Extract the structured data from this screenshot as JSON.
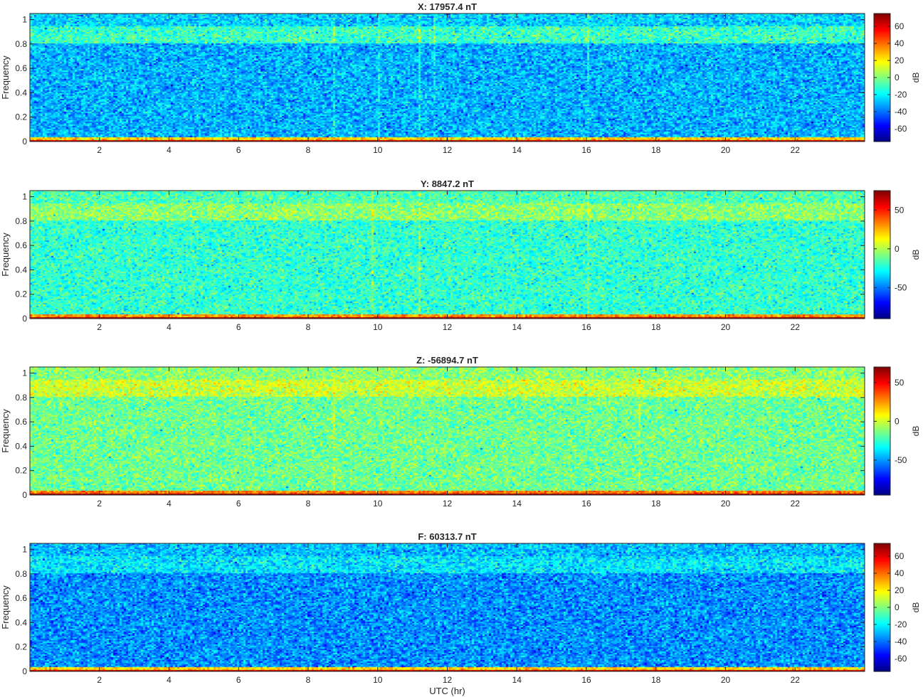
{
  "figure": {
    "xlabel": "UTC (hr)",
    "ylabel": "Frequency",
    "colorbar_label": "dB"
  },
  "chart_data": [
    {
      "type": "heatmap",
      "title": "X: 17957.4 nT",
      "xlabel": "",
      "ylabel": "Frequency",
      "xlim": [
        0,
        24
      ],
      "ylim": [
        0,
        1.05
      ],
      "xticks": [
        2,
        4,
        6,
        8,
        10,
        12,
        14,
        16,
        18,
        20,
        22
      ],
      "yticks": [
        0,
        0.2,
        0.4,
        0.6,
        0.8,
        1
      ],
      "colormap": "jet",
      "colorbar": {
        "label": "dB",
        "clim": [
          -75,
          75
        ],
        "ticks": [
          -60,
          -40,
          -20,
          0,
          20,
          40,
          60
        ]
      },
      "levels_db": {
        "f_0_0.01": 65,
        "f_0.01_0.03": 25,
        "f_0.03_0.8": -30,
        "f_0.8_0.95": -10,
        "f_0.95_1.05": -25
      },
      "features": {
        "vertical_streaks_hr": [
          8.7,
          10.0,
          11.2,
          11.6,
          16.0
        ]
      }
    },
    {
      "type": "heatmap",
      "title": "Y: 8847.2 nT",
      "xlabel": "",
      "ylabel": "Frequency",
      "xlim": [
        0,
        24
      ],
      "ylim": [
        0,
        1.05
      ],
      "xticks": [
        2,
        4,
        6,
        8,
        10,
        12,
        14,
        16,
        18,
        20,
        22
      ],
      "yticks": [
        0,
        0.2,
        0.4,
        0.6,
        0.8,
        1
      ],
      "colormap": "jet",
      "colorbar": {
        "label": "dB",
        "clim": [
          -90,
          75
        ],
        "ticks": [
          -50,
          0,
          50
        ]
      },
      "levels_db": {
        "f_0_0.01": 70,
        "f_0.01_0.03": 30,
        "f_0.03_0.8": -20,
        "f_0.8_0.95": -5,
        "f_0.95_1.05": -15
      },
      "features": {
        "vertical_streaks_hr": [
          9.8,
          11.2,
          16.0
        ]
      }
    },
    {
      "type": "heatmap",
      "title": "Z: -56894.7 nT",
      "xlabel": "",
      "ylabel": "Frequency",
      "xlim": [
        0,
        24
      ],
      "ylim": [
        0,
        1.05
      ],
      "xticks": [
        2,
        4,
        6,
        8,
        10,
        12,
        14,
        16,
        18,
        20,
        22
      ],
      "yticks": [
        0,
        0.2,
        0.4,
        0.6,
        0.8,
        1
      ],
      "colormap": "jet",
      "colorbar": {
        "label": "dB",
        "clim": [
          -95,
          70
        ],
        "ticks": [
          -50,
          0,
          50
        ]
      },
      "levels_db": {
        "f_0_0.01": 65,
        "f_0.01_0.03": 30,
        "f_0.03_0.8": -15,
        "f_0.8_0.95": 0,
        "f_0.95_1.05": -10
      },
      "features": {
        "vertical_streaks_hr": [
          8.7,
          17.5
        ]
      }
    },
    {
      "type": "heatmap",
      "title": "F: 60313.7 nT",
      "xlabel": "UTC (hr)",
      "ylabel": "Frequency",
      "xlim": [
        0,
        24
      ],
      "ylim": [
        0,
        1.05
      ],
      "xticks": [
        2,
        4,
        6,
        8,
        10,
        12,
        14,
        16,
        18,
        20,
        22
      ],
      "yticks": [
        0,
        0.2,
        0.4,
        0.6,
        0.8,
        1
      ],
      "colormap": "jet",
      "colorbar": {
        "label": "dB",
        "clim": [
          -75,
          75
        ],
        "ticks": [
          -60,
          -40,
          -20,
          0,
          20,
          40,
          60
        ]
      },
      "levels_db": {
        "f_0_0.01": 65,
        "f_0.01_0.03": 25,
        "f_0.03_0.8": -35,
        "f_0.8_0.95": -22,
        "f_0.95_1.05": -28
      },
      "features": {
        "vertical_streaks_hr": []
      }
    }
  ]
}
